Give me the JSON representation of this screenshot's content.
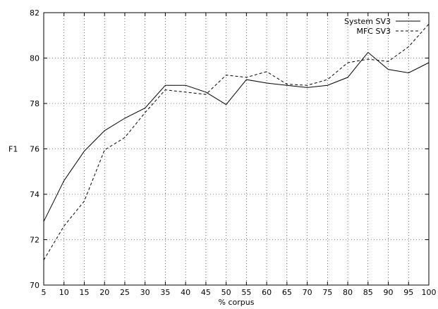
{
  "chart_data": {
    "type": "line",
    "title": "",
    "xlabel": "% corpus",
    "ylabel": "F1",
    "x": [
      5,
      10,
      15,
      20,
      25,
      30,
      35,
      40,
      45,
      50,
      55,
      60,
      65,
      70,
      75,
      80,
      85,
      90,
      95,
      100
    ],
    "xlim": [
      5,
      100
    ],
    "ylim": [
      70,
      82
    ],
    "xticks": [
      5,
      10,
      15,
      20,
      25,
      30,
      35,
      40,
      45,
      50,
      55,
      60,
      65,
      70,
      75,
      80,
      85,
      90,
      95,
      100
    ],
    "yticks": [
      70,
      72,
      74,
      76,
      78,
      80,
      82
    ],
    "grid": true,
    "legend_position": "top-right",
    "series": [
      {
        "name": "System SV3",
        "style": "solid",
        "color": "#000000",
        "values": [
          72.8,
          74.6,
          75.9,
          76.8,
          77.35,
          77.8,
          78.8,
          78.8,
          78.5,
          77.95,
          79.05,
          78.9,
          78.8,
          78.7,
          78.8,
          79.15,
          80.25,
          79.5,
          79.35,
          79.8
        ]
      },
      {
        "name": "MFC SV3",
        "style": "dashed",
        "color": "#000000",
        "values": [
          71.1,
          72.6,
          73.7,
          75.95,
          76.5,
          77.6,
          78.6,
          78.5,
          78.4,
          79.25,
          79.15,
          79.4,
          78.85,
          78.8,
          79.05,
          79.8,
          79.95,
          79.85,
          80.5,
          81.5
        ]
      }
    ]
  }
}
